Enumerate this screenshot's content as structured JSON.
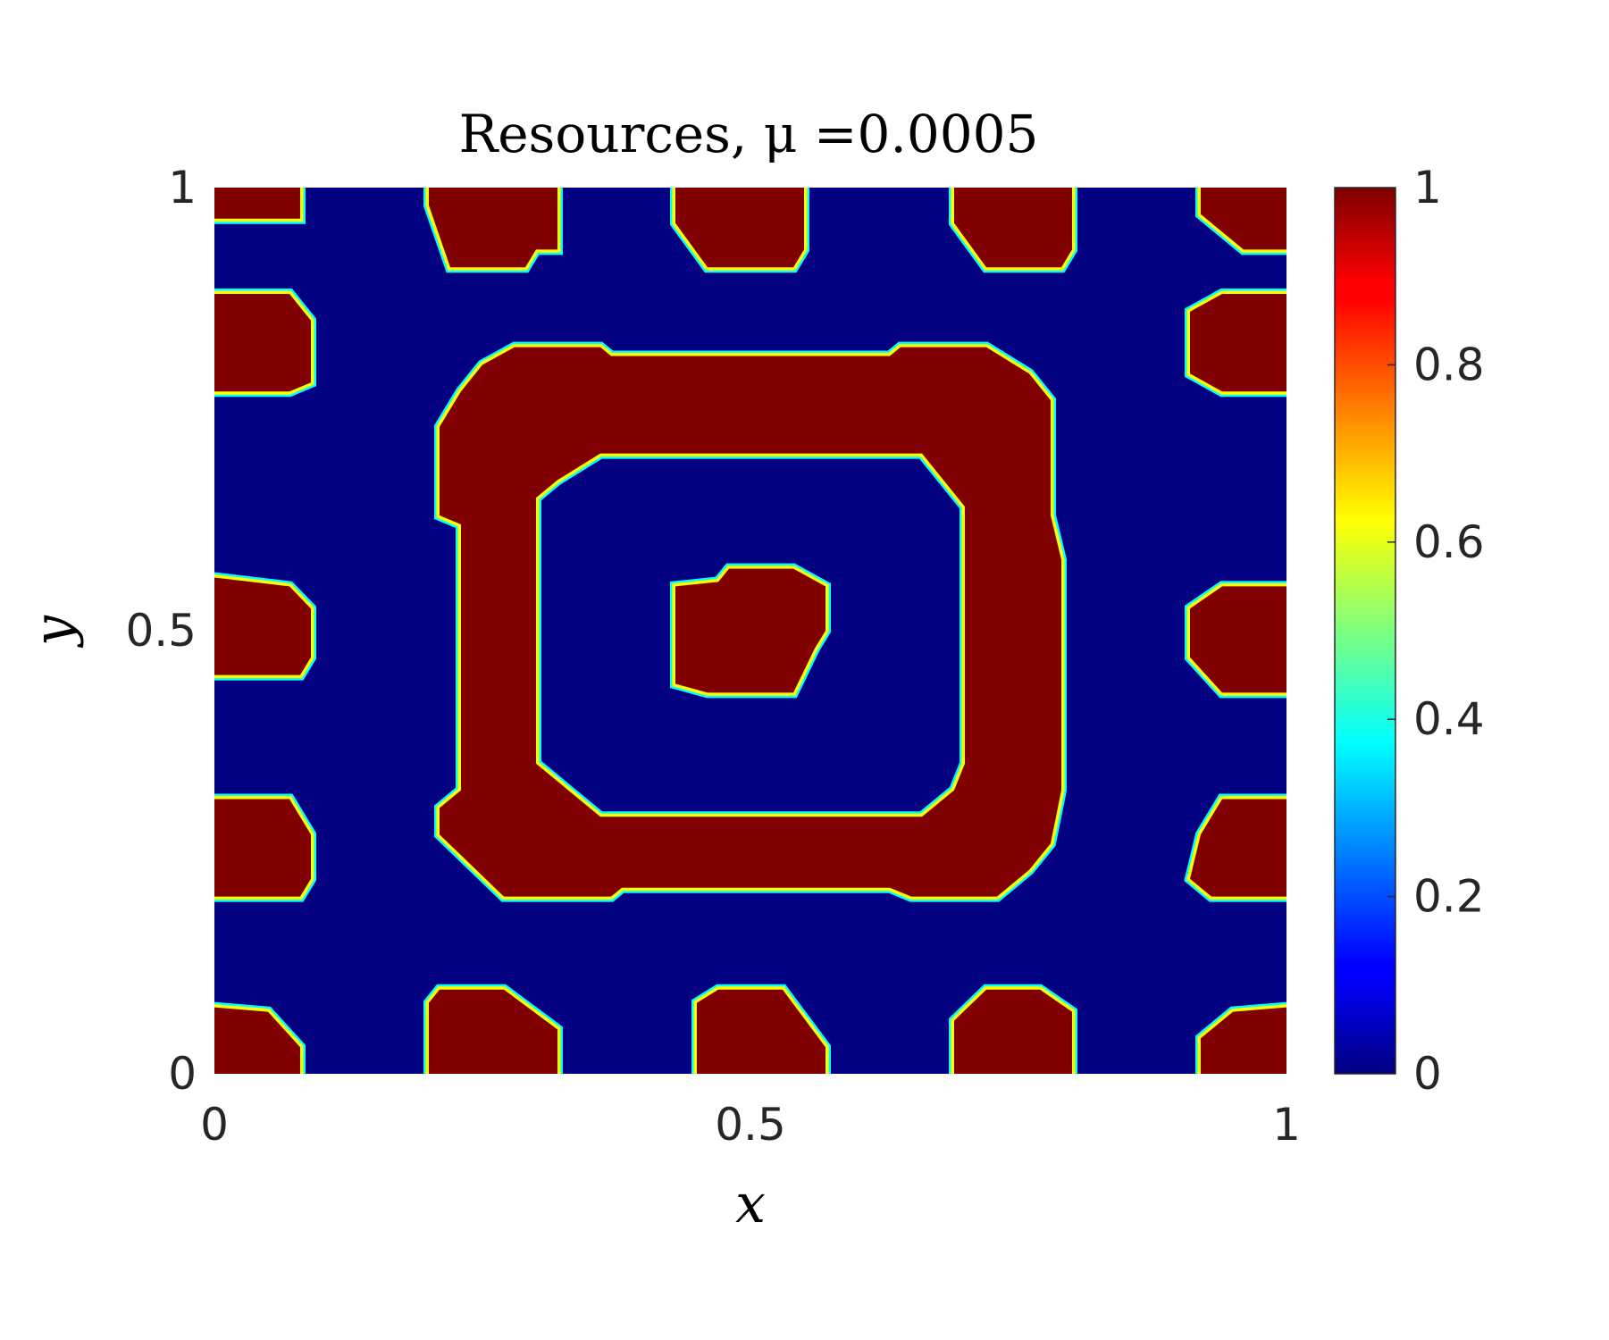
{
  "chart_data": {
    "type": "heatmap",
    "title": "Resources, μ =0.0005",
    "xlabel": "x",
    "ylabel": "y",
    "xlim": [
      0,
      1
    ],
    "ylim": [
      0,
      1
    ],
    "x_ticks": [
      "0",
      "0.5",
      "1"
    ],
    "y_ticks": [
      "0",
      "0.5",
      "1"
    ],
    "colormap": "jet",
    "clim": [
      0,
      1
    ],
    "colorbar_ticks": [
      "0",
      "0.2",
      "0.4",
      "0.6",
      "0.8",
      "1"
    ],
    "background_value": 0,
    "regions": [
      {
        "value": 1,
        "polygon": [
          [
            0,
            0.965
          ],
          [
            0.08,
            0.965
          ],
          [
            0.08,
            1
          ],
          [
            0,
            1
          ]
        ]
      },
      {
        "value": 1,
        "polygon": [
          [
            0.2,
            0.98
          ],
          [
            0.22,
            0.91
          ],
          [
            0.29,
            0.91
          ],
          [
            0.3,
            0.93
          ],
          [
            0.32,
            0.93
          ],
          [
            0.32,
            1
          ],
          [
            0.2,
            1
          ]
        ]
      },
      {
        "value": 1,
        "polygon": [
          [
            0.43,
            0.96
          ],
          [
            0.46,
            0.91
          ],
          [
            0.54,
            0.91
          ],
          [
            0.55,
            0.93
          ],
          [
            0.55,
            1
          ],
          [
            0.43,
            1
          ]
        ]
      },
      {
        "value": 1,
        "polygon": [
          [
            0.69,
            0.96
          ],
          [
            0.72,
            0.91
          ],
          [
            0.79,
            0.91
          ],
          [
            0.8,
            0.93
          ],
          [
            0.8,
            1
          ],
          [
            0.69,
            1
          ]
        ]
      },
      {
        "value": 1,
        "polygon": [
          [
            0.92,
            0.97
          ],
          [
            0.96,
            0.93
          ],
          [
            1,
            0.93
          ],
          [
            1,
            1
          ],
          [
            0.92,
            1
          ]
        ]
      },
      {
        "value": 1,
        "polygon": [
          [
            0,
            0.77
          ],
          [
            0.07,
            0.77
          ],
          [
            0.09,
            0.78
          ],
          [
            0.09,
            0.85
          ],
          [
            0.07,
            0.88
          ],
          [
            0,
            0.88
          ]
        ]
      },
      {
        "value": 1,
        "polygon": [
          [
            0.91,
            0.79
          ],
          [
            0.94,
            0.77
          ],
          [
            1,
            0.77
          ],
          [
            1,
            0.88
          ],
          [
            0.94,
            0.88
          ],
          [
            0.91,
            0.86
          ]
        ]
      },
      {
        "value": 1,
        "polygon": [
          [
            0,
            0.45
          ],
          [
            0.08,
            0.45
          ],
          [
            0.09,
            0.47
          ],
          [
            0.09,
            0.525
          ],
          [
            0.07,
            0.55
          ],
          [
            0,
            0.56
          ]
        ]
      },
      {
        "value": 1,
        "polygon": [
          [
            0.91,
            0.47
          ],
          [
            0.94,
            0.43
          ],
          [
            1,
            0.43
          ],
          [
            1,
            0.55
          ],
          [
            0.94,
            0.55
          ],
          [
            0.91,
            0.525
          ]
        ]
      },
      {
        "value": 1,
        "polygon": [
          [
            0,
            0.2
          ],
          [
            0.08,
            0.2
          ],
          [
            0.09,
            0.22
          ],
          [
            0.09,
            0.27
          ],
          [
            0.07,
            0.31
          ],
          [
            0,
            0.31
          ]
        ]
      },
      {
        "value": 1,
        "polygon": [
          [
            0.91,
            0.22
          ],
          [
            0.93,
            0.2
          ],
          [
            1,
            0.2
          ],
          [
            1,
            0.31
          ],
          [
            0.94,
            0.31
          ],
          [
            0.92,
            0.27
          ]
        ]
      },
      {
        "value": 1,
        "polygon": [
          [
            0,
            0
          ],
          [
            0.08,
            0
          ],
          [
            0.08,
            0.03
          ],
          [
            0.05,
            0.07
          ],
          [
            0,
            0.075
          ]
        ]
      },
      {
        "value": 1,
        "polygon": [
          [
            0.2,
            0
          ],
          [
            0.32,
            0
          ],
          [
            0.32,
            0.05
          ],
          [
            0.27,
            0.095
          ],
          [
            0.21,
            0.095
          ],
          [
            0.2,
            0.08
          ]
        ]
      },
      {
        "value": 1,
        "polygon": [
          [
            0.45,
            0
          ],
          [
            0.57,
            0
          ],
          [
            0.57,
            0.03
          ],
          [
            0.53,
            0.095
          ],
          [
            0.47,
            0.095
          ],
          [
            0.45,
            0.08
          ]
        ]
      },
      {
        "value": 1,
        "polygon": [
          [
            0.69,
            0
          ],
          [
            0.8,
            0
          ],
          [
            0.8,
            0.07
          ],
          [
            0.77,
            0.095
          ],
          [
            0.72,
            0.095
          ],
          [
            0.69,
            0.06
          ]
        ]
      },
      {
        "value": 1,
        "polygon": [
          [
            0.92,
            0
          ],
          [
            1,
            0
          ],
          [
            1,
            0.075
          ],
          [
            0.95,
            0.07
          ],
          [
            0.92,
            0.04
          ]
        ]
      },
      {
        "value": 1,
        "polygon": [
          [
            0.43,
            0.44
          ],
          [
            0.46,
            0.43
          ],
          [
            0.54,
            0.43
          ],
          [
            0.56,
            0.48
          ],
          [
            0.57,
            0.5
          ],
          [
            0.57,
            0.55
          ],
          [
            0.54,
            0.57
          ],
          [
            0.48,
            0.57
          ],
          [
            0.47,
            0.555
          ],
          [
            0.43,
            0.55
          ]
        ]
      },
      {
        "value": 1,
        "evenodd": true,
        "polygon": [
          [
            0.21,
            0.27
          ],
          [
            0.27,
            0.2
          ],
          [
            0.37,
            0.2
          ],
          [
            0.38,
            0.21
          ],
          [
            0.63,
            0.21
          ],
          [
            0.65,
            0.2
          ],
          [
            0.73,
            0.2
          ],
          [
            0.76,
            0.23
          ],
          [
            0.78,
            0.26
          ],
          [
            0.79,
            0.32
          ],
          [
            0.79,
            0.58
          ],
          [
            0.78,
            0.63
          ],
          [
            0.78,
            0.76
          ],
          [
            0.76,
            0.79
          ],
          [
            0.72,
            0.82
          ],
          [
            0.64,
            0.82
          ],
          [
            0.63,
            0.81
          ],
          [
            0.37,
            0.81
          ],
          [
            0.36,
            0.82
          ],
          [
            0.28,
            0.82
          ],
          [
            0.25,
            0.8
          ],
          [
            0.23,
            0.77
          ],
          [
            0.21,
            0.73
          ],
          [
            0.21,
            0.63
          ],
          [
            0.23,
            0.62
          ],
          [
            0.23,
            0.32
          ],
          [
            0.21,
            0.3
          ]
        ],
        "hole": [
          [
            0.3,
            0.35
          ],
          [
            0.36,
            0.29
          ],
          [
            0.66,
            0.29
          ],
          [
            0.69,
            0.32
          ],
          [
            0.7,
            0.35
          ],
          [
            0.7,
            0.64
          ],
          [
            0.68,
            0.67
          ],
          [
            0.66,
            0.7
          ],
          [
            0.36,
            0.7
          ],
          [
            0.32,
            0.67
          ],
          [
            0.3,
            0.65
          ]
        ]
      }
    ]
  }
}
